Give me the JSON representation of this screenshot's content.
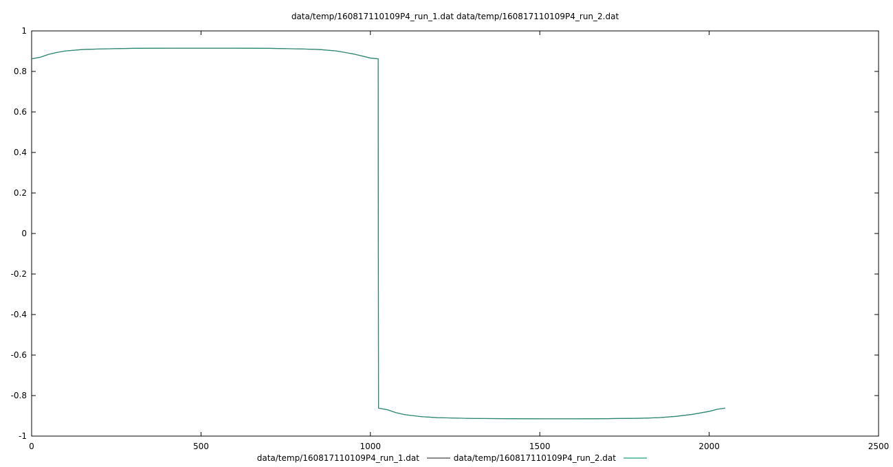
{
  "chart_data": {
    "type": "line",
    "title": "data/temp/160817110109P4_run_1.dat data/temp/160817110109P4_run_2.dat",
    "xlabel": "",
    "ylabel": "",
    "xlim": [
      0,
      2500
    ],
    "ylim": [
      -1,
      1
    ],
    "xticks": [
      0,
      500,
      1000,
      1500,
      2000,
      2500
    ],
    "yticks": [
      1,
      0.8,
      0.6,
      0.4,
      0.2,
      0,
      -0.2,
      -0.4,
      -0.6,
      -0.8,
      -1
    ],
    "xtick_labels": [
      "0",
      "500",
      "1000",
      "1500",
      "2000",
      "2500"
    ],
    "ytick_labels": [
      "1",
      "0.8",
      "0.6",
      "0.4",
      "0.2",
      "0",
      "-0.2",
      "-0.4",
      "-0.6",
      "-0.8",
      "-1"
    ],
    "grid": false,
    "legend_position": "bottom",
    "series": [
      {
        "name": "data/temp/160817110109P4_run_1.dat",
        "color": "#444444",
        "x": [
          0,
          25,
          50,
          75,
          100,
          150,
          200,
          300,
          400,
          500,
          600,
          700,
          800,
          850,
          900,
          950,
          1000,
          1023,
          1024,
          1050,
          1075,
          1100,
          1150,
          1200,
          1300,
          1400,
          1500,
          1600,
          1700,
          1800,
          1850,
          1900,
          1950,
          2000,
          2025,
          2047
        ],
        "y": [
          0.862,
          0.87,
          0.884,
          0.894,
          0.901,
          0.908,
          0.911,
          0.914,
          0.915,
          0.915,
          0.915,
          0.914,
          0.911,
          0.908,
          0.901,
          0.886,
          0.866,
          0.862,
          -0.862,
          -0.87,
          -0.884,
          -0.894,
          -0.904,
          -0.909,
          -0.913,
          -0.914,
          -0.915,
          -0.915,
          -0.914,
          -0.912,
          -0.909,
          -0.903,
          -0.893,
          -0.878,
          -0.867,
          -0.862
        ]
      },
      {
        "name": "data/temp/160817110109P4_run_2.dat",
        "color": "#1aa07d",
        "x": [
          0,
          25,
          50,
          75,
          100,
          150,
          200,
          300,
          400,
          500,
          600,
          700,
          800,
          850,
          900,
          950,
          1000,
          1023,
          1024,
          1050,
          1075,
          1100,
          1150,
          1200,
          1300,
          1400,
          1500,
          1600,
          1700,
          1800,
          1850,
          1900,
          1950,
          2000,
          2025,
          2047
        ],
        "y": [
          0.862,
          0.87,
          0.884,
          0.894,
          0.901,
          0.908,
          0.911,
          0.914,
          0.915,
          0.915,
          0.915,
          0.914,
          0.911,
          0.908,
          0.901,
          0.886,
          0.866,
          0.862,
          -0.862,
          -0.87,
          -0.884,
          -0.894,
          -0.904,
          -0.909,
          -0.913,
          -0.914,
          -0.915,
          -0.915,
          -0.914,
          -0.912,
          -0.909,
          -0.903,
          -0.893,
          -0.878,
          -0.867,
          -0.862
        ]
      }
    ]
  }
}
